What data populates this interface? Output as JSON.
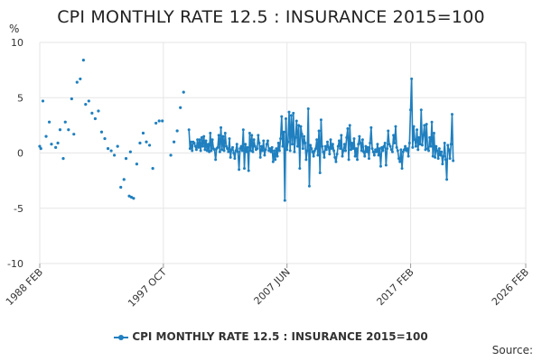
{
  "chart_data": {
    "type": "line",
    "title": "CPI MONTHLY RATE 12.5 : INSURANCE 2015=100",
    "ylabel": "%",
    "xlabel": "",
    "ylim": [
      -10,
      10
    ],
    "yticks": [
      10,
      5,
      0,
      -5,
      -10
    ],
    "x_tick_labels": [
      "1988 FEB",
      "1997 OCT",
      "2007 JUN",
      "2017 FEB",
      "2026 FEB"
    ],
    "x_tick_years": [
      1988.083,
      1997.75,
      2007.417,
      2017.083,
      2026.083
    ],
    "xlim": [
      1988.083,
      2026.083
    ],
    "grid": "horizontal",
    "legend_position": "bottom",
    "source_label": "Source:",
    "color": "#1f7fbf",
    "series": [
      {
        "name": "CPI MONTHLY RATE 12.5 : INSURANCE 2015=100",
        "sparse_points": [
          [
            1988.08,
            0.6
          ],
          [
            1988.17,
            0.4
          ],
          [
            1988.33,
            4.7
          ],
          [
            1988.58,
            1.5
          ],
          [
            1988.83,
            2.8
          ],
          [
            1989.0,
            0.8
          ],
          [
            1989.33,
            0.5
          ],
          [
            1989.5,
            0.9
          ],
          [
            1989.67,
            2.1
          ],
          [
            1989.92,
            -0.5
          ],
          [
            1990.08,
            2.8
          ],
          [
            1990.33,
            2.1
          ],
          [
            1990.58,
            4.9
          ],
          [
            1990.75,
            1.7
          ],
          [
            1991.0,
            6.4
          ],
          [
            1991.25,
            6.7
          ],
          [
            1991.5,
            8.4
          ],
          [
            1991.67,
            4.4
          ],
          [
            1991.92,
            4.7
          ],
          [
            1992.17,
            3.6
          ],
          [
            1992.42,
            3.1
          ],
          [
            1992.67,
            3.8
          ],
          [
            1992.92,
            1.9
          ],
          [
            1993.17,
            1.3
          ],
          [
            1993.42,
            0.4
          ],
          [
            1993.67,
            0.2
          ],
          [
            1993.92,
            -0.2
          ],
          [
            1994.17,
            0.6
          ],
          [
            1994.42,
            -3.1
          ],
          [
            1994.67,
            -2.4
          ],
          [
            1994.83,
            -0.5
          ],
          [
            1995.08,
            -3.9
          ],
          [
            1995.17,
            0.1
          ],
          [
            1995.25,
            -4.0
          ],
          [
            1995.42,
            -4.1
          ],
          [
            1995.67,
            -1.0
          ],
          [
            1995.92,
            0.9
          ],
          [
            1996.17,
            1.8
          ],
          [
            1996.42,
            1.0
          ],
          [
            1996.67,
            0.7
          ],
          [
            1996.92,
            -1.4
          ],
          [
            1997.17,
            2.7
          ],
          [
            1997.42,
            2.9
          ],
          [
            1997.67,
            2.9
          ],
          [
            1998.33,
            -0.2
          ],
          [
            1998.58,
            1.0
          ],
          [
            1998.83,
            2.0
          ],
          [
            1999.08,
            4.1
          ],
          [
            1999.33,
            5.5
          ]
        ],
        "dense_start_year": 1999.75,
        "dense_step_years": 0.0833,
        "dense_values": [
          2.1,
          0.4,
          1.0,
          0.2,
          1.0,
          0.9,
          0.6,
          0.3,
          1.2,
          0.5,
          1.2,
          0.2,
          1.4,
          0.6,
          1.5,
          0.3,
          1.1,
          0.2,
          0.8,
          0.1,
          1.8,
          0.2,
          1.2,
          0.4,
          0.3,
          -0.6,
          0.4,
          0.5,
          1.6,
          0.1,
          2.3,
          0.3,
          1.5,
          0.2,
          1.8,
          0.6,
          0.4,
          0.1,
          1.3,
          -0.4,
          0.3,
          0.5,
          0.0,
          -0.5,
          0.2,
          0.8,
          0.1,
          -1.5,
          0.4,
          0.6,
          0.2,
          2.1,
          -1.4,
          0.8,
          0.1,
          0.5,
          -1.6,
          1.8,
          0.2,
          1.6,
          0.1,
          1.2,
          0.6,
          0.3,
          0.4,
          1.6,
          0.9,
          -0.4,
          0.6,
          0.2,
          1.1,
          -0.2,
          0.3,
          0.8,
          1.1,
          0.2,
          0.4,
          0.1,
          0.5,
          -0.8,
          0.2,
          -0.6,
          0.4,
          -0.3,
          0.9,
          0.2,
          1.3,
          3.3,
          0.6,
          1.9,
          -4.3,
          3.1,
          0.3,
          1.0,
          3.7,
          0.2,
          3.4,
          0.8,
          3.6,
          0.1,
          1.4,
          2.9,
          0.6,
          2.5,
          -1.4,
          2.4,
          1.7,
          0.4,
          1.5,
          0.9,
          -0.6,
          0.2,
          4.0,
          -3.0,
          0.7,
          0.4,
          0.1,
          -0.3,
          0.2,
          0.4,
          1.2,
          -0.2,
          2.0,
          -1.8,
          3.0,
          0.6,
          0.1,
          -0.4,
          0.6,
          0.3,
          1.0,
          0.5,
          -0.1,
          1.2,
          0.4,
          0.8,
          0.2,
          -0.4,
          -0.8,
          -0.1,
          0.6,
          1.1,
          0.4,
          1.6,
          -0.3,
          0.2,
          0.8,
          0.2,
          1.4,
          2.2,
          -0.6,
          2.5,
          0.3,
          0.9,
          0.4,
          1.3,
          -0.3,
          0.4,
          -0.6,
          0.8,
          1.5,
          0.9,
          0.2,
          1.2,
          0.1,
          -0.3,
          0.6,
          0.1,
          0.5,
          -0.5,
          0.9,
          2.3,
          0.4,
          0.1,
          -0.2,
          0.3,
          0.1,
          0.8,
          -0.2,
          0.4,
          -1.2,
          0.5,
          0.2,
          0.6,
          0.9,
          -1.1,
          0.4,
          2.0,
          0.8,
          0.6,
          0.3,
          0.1,
          1.6,
          0.9,
          2.4,
          0.5,
          0.2,
          -0.5,
          -0.8,
          0.3,
          -1.4,
          0.1,
          0.3,
          0.6,
          0.2,
          0.4,
          -0.3,
          0.9,
          3.9,
          6.7,
          0.5,
          2.4,
          1.2,
          0.6,
          2.1,
          0.3,
          1.4,
          0.8,
          3.9,
          0.7,
          1.6,
          2.5,
          0.3,
          2.6,
          0.4,
          0.2,
          1.4,
          0.6,
          2.8,
          -0.3,
          1.8,
          -0.4,
          0.6,
          0.2,
          -0.5,
          0.4,
          -0.2,
          0.1,
          -1.0,
          -0.3,
          0.9,
          -0.6,
          -2.4,
          0.7,
          0.3,
          -0.5,
          0.8,
          3.5,
          -0.7
        ]
      }
    ]
  }
}
